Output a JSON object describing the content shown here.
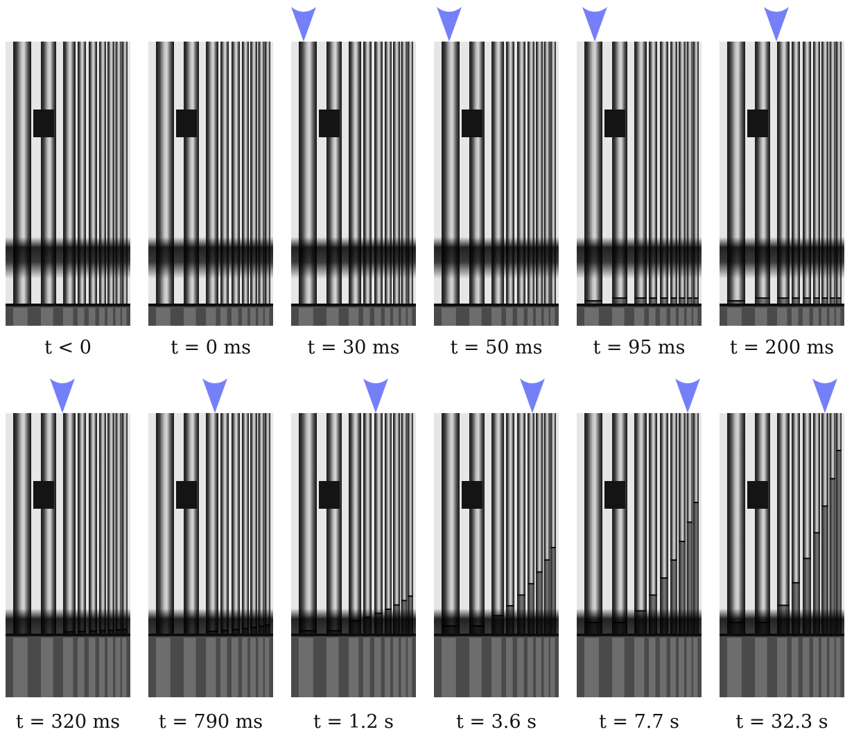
{
  "figure": {
    "arrow_color": "#7580f8",
    "rows": [
      {
        "panels": [
          {
            "time_label": "t < 0",
            "arrow": false
          },
          {
            "time_label": "t = 0 ms",
            "arrow": false
          },
          {
            "time_label": "t = 30 ms",
            "arrow": true
          },
          {
            "time_label": "t = 50 ms",
            "arrow": true
          },
          {
            "time_label": "t = 95 ms",
            "arrow": true
          },
          {
            "time_label": "t = 200 ms",
            "arrow": true
          }
        ]
      },
      {
        "panels": [
          {
            "time_label": "t = 320 ms",
            "arrow": true
          },
          {
            "time_label": "t = 790 ms",
            "arrow": true
          },
          {
            "time_label": "t = 1.2 s",
            "arrow": true
          },
          {
            "time_label": "t = 3.6 s",
            "arrow": true
          },
          {
            "time_label": "t = 7.7 s",
            "arrow": true
          },
          {
            "time_label": "t = 32.3 s",
            "arrow": true
          }
        ]
      }
    ]
  }
}
